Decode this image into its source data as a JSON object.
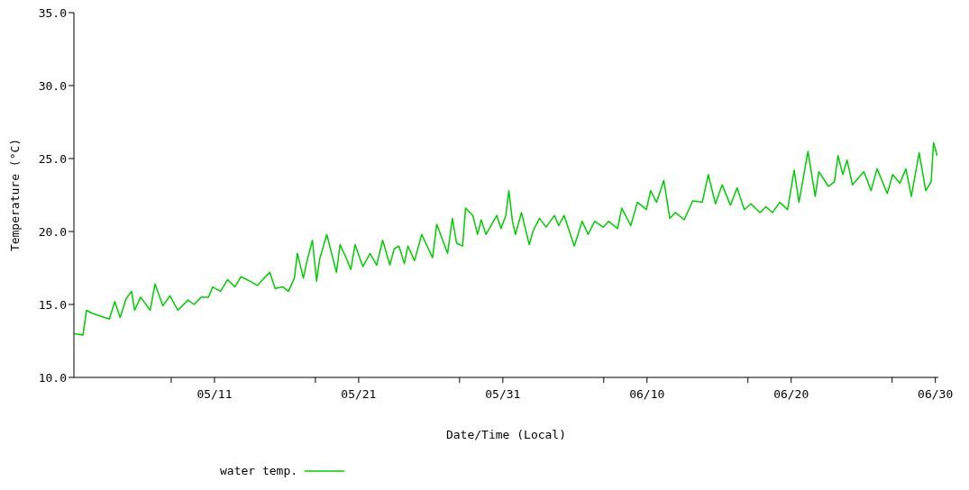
{
  "chart_data": {
    "type": "line",
    "xlabel": "Date/Time (Local)",
    "ylabel": "Temperature (°C)",
    "legend": "bottom",
    "marker": "none",
    "line_style": "solid",
    "xlim": [
      "--05-01T06:00",
      "--06-30T05:00"
    ],
    "ylim": [
      10,
      35
    ],
    "xticks": [
      {
        "value": "--05-08",
        "label": null
      },
      {
        "value": "--05-11",
        "label": "05/11"
      },
      {
        "value": "--05-18",
        "label": null
      },
      {
        "value": "--05-21",
        "label": "05/21"
      },
      {
        "value": "--05-28",
        "label": null
      },
      {
        "value": "--05-31",
        "label": "05/31"
      },
      {
        "value": "--06-07",
        "label": null
      },
      {
        "value": "--06-10",
        "label": "06/10"
      },
      {
        "value": "--06-17",
        "label": null
      },
      {
        "value": "--06-20",
        "label": "06/20"
      },
      {
        "value": "--06-27",
        "label": null
      },
      {
        "value": "--06-30",
        "label": "06/30"
      }
    ],
    "yticks": [
      {
        "value": 10,
        "label": "10.0"
      },
      {
        "value": 15,
        "label": "15.0"
      },
      {
        "value": 20,
        "label": "20.0"
      },
      {
        "value": 25,
        "label": "25.0"
      },
      {
        "value": 30,
        "label": "30.0"
      },
      {
        "value": 35,
        "label": "35.0"
      }
    ],
    "series": [
      {
        "name": "water temp.",
        "color": "#00cc00",
        "x": [
          "--05-01T07:00",
          "--05-01T21:00",
          "--05-02T03:00",
          "--05-02T12:00",
          "--05-03T17:00",
          "--05-04T02:00",
          "--05-04T11:00",
          "--05-04T21:00",
          "--05-05T06:00",
          "--05-05T11:00",
          "--05-05T21:00",
          "--05-06T13:00",
          "--05-06T21:00",
          "--05-07T10:00",
          "--05-07T22:00",
          "--05-08T11:00",
          "--05-09T04:00",
          "--05-09T14:00",
          "--05-10T02:00",
          "--05-10T14:00",
          "--05-10T21:00",
          "--05-11T10:00",
          "--05-11T22:00",
          "--05-12T10:00",
          "--05-12T20:00",
          "--05-13T11:00",
          "--05-13T23:00",
          "--05-14T20:00",
          "--05-15T05:00",
          "--05-15T18:00",
          "--05-16T03:00",
          "--05-16T13:00",
          "--05-16T18:00",
          "--05-17T04:00",
          "--05-17T09:00",
          "--05-17T19:00",
          "--05-18T02:00",
          "--05-18T07:00",
          "--05-18T19:00",
          "--05-19T11:00",
          "--05-19T17:00",
          "--05-20T02:00",
          "--05-20T11:00",
          "--05-20T18:00",
          "--05-21T07:00",
          "--05-21T19:00",
          "--05-22T06:00",
          "--05-22T16:00",
          "--05-23T04:00",
          "--05-23T11:00",
          "--05-23T19:00",
          "--05-24T04:00",
          "--05-24T10:00",
          "--05-24T21:00",
          "--05-25T09:00",
          "--05-26T03:00",
          "--05-26T10:00",
          "--05-27T04:00",
          "--05-27T12:00",
          "--05-27T19:00",
          "--05-28T05:00",
          "--05-28T10:00",
          "--05-28T22:00",
          "--05-29T06:00",
          "--05-29T12:00",
          "--05-29T20:00",
          "--05-30T14:00",
          "--05-30T21:00",
          "--05-31T05:00",
          "--05-31T10:00",
          "--05-31T16:00",
          "--05-31T21:00",
          "--06-01T07:00",
          "--06-01T20:00",
          "--06-02T02:00",
          "--06-02T13:00",
          "--06-03T00:00",
          "--06-03T14:00",
          "--06-03T21:00",
          "--06-04T06:00",
          "--06-04T23:00",
          "--06-05T12:00",
          "--06-05T22:00",
          "--06-06T09:00",
          "--06-06T23:00",
          "--06-07T08:00",
          "--06-07T23:00",
          "--06-08T06:00",
          "--06-08T21:00",
          "--06-09T08:00",
          "--06-09T23:00",
          "--06-10T06:00",
          "--06-10T16:00",
          "--06-11T04:00",
          "--06-11T14:00",
          "--06-11T23:00",
          "--06-12T14:00",
          "--06-13T04:00",
          "--06-13T20:00",
          "--06-14T06:00",
          "--06-14T18:00",
          "--06-15T05:00",
          "--06-15T19:00",
          "--06-16T06:00",
          "--06-16T18:00",
          "--06-17T05:00",
          "--06-17T20:00",
          "--06-18T06:00",
          "--06-18T17:00",
          "--06-19T05:00",
          "--06-19T18:00",
          "--06-20T05:00",
          "--06-20T13:00",
          "--06-21T04:00",
          "--06-21T16:00",
          "--06-21T22:00",
          "--06-22T14:00",
          "--06-23T00:00",
          "--06-23T06:00",
          "--06-23T14:00",
          "--06-23T21:00",
          "--06-24T06:00",
          "--06-25T01:00",
          "--06-25T13:00",
          "--06-25T23:00",
          "--06-26T16:00",
          "--06-27T01:00",
          "--06-27T13:00",
          "--06-27T23:00",
          "--06-28T08:00",
          "--06-28T21:00",
          "--06-29T08:00",
          "--06-29T17:00",
          "--06-29T21:00",
          "--06-30T03:00"
        ],
        "values": [
          13.0,
          12.9,
          14.6,
          14.4,
          14.0,
          15.2,
          14.1,
          15.4,
          15.9,
          14.6,
          15.5,
          14.6,
          16.4,
          14.9,
          15.6,
          14.6,
          15.3,
          15.0,
          15.5,
          15.5,
          16.2,
          15.9,
          16.7,
          16.2,
          16.9,
          16.6,
          16.3,
          17.2,
          16.1,
          16.2,
          15.9,
          16.8,
          18.5,
          16.8,
          17.8,
          19.4,
          16.6,
          18.1,
          19.8,
          17.2,
          19.1,
          18.3,
          17.4,
          19.1,
          17.6,
          18.5,
          17.7,
          19.4,
          17.7,
          18.8,
          19.0,
          17.8,
          19.0,
          18.0,
          19.8,
          18.2,
          20.5,
          18.5,
          20.9,
          19.2,
          19.0,
          21.6,
          21.1,
          19.8,
          20.8,
          19.8,
          21.1,
          20.2,
          21.1,
          22.8,
          20.7,
          19.8,
          21.3,
          19.1,
          20.0,
          20.9,
          20.3,
          21.1,
          20.4,
          21.1,
          19.0,
          20.7,
          19.8,
          20.7,
          20.3,
          20.7,
          20.2,
          21.6,
          20.4,
          22.0,
          21.5,
          22.8,
          22.0,
          23.5,
          20.9,
          21.3,
          20.8,
          22.1,
          22.0,
          23.9,
          21.9,
          23.2,
          21.8,
          23.0,
          21.5,
          21.9,
          21.3,
          21.7,
          21.3,
          22.0,
          21.5,
          24.2,
          22.0,
          25.5,
          22.4,
          24.1,
          23.1,
          23.4,
          25.2,
          23.9,
          24.9,
          23.2,
          24.1,
          22.8,
          24.3,
          22.6,
          23.9,
          23.3,
          24.3,
          22.4,
          25.4,
          22.8,
          23.4,
          26.1,
          25.2
        ]
      }
    ]
  }
}
